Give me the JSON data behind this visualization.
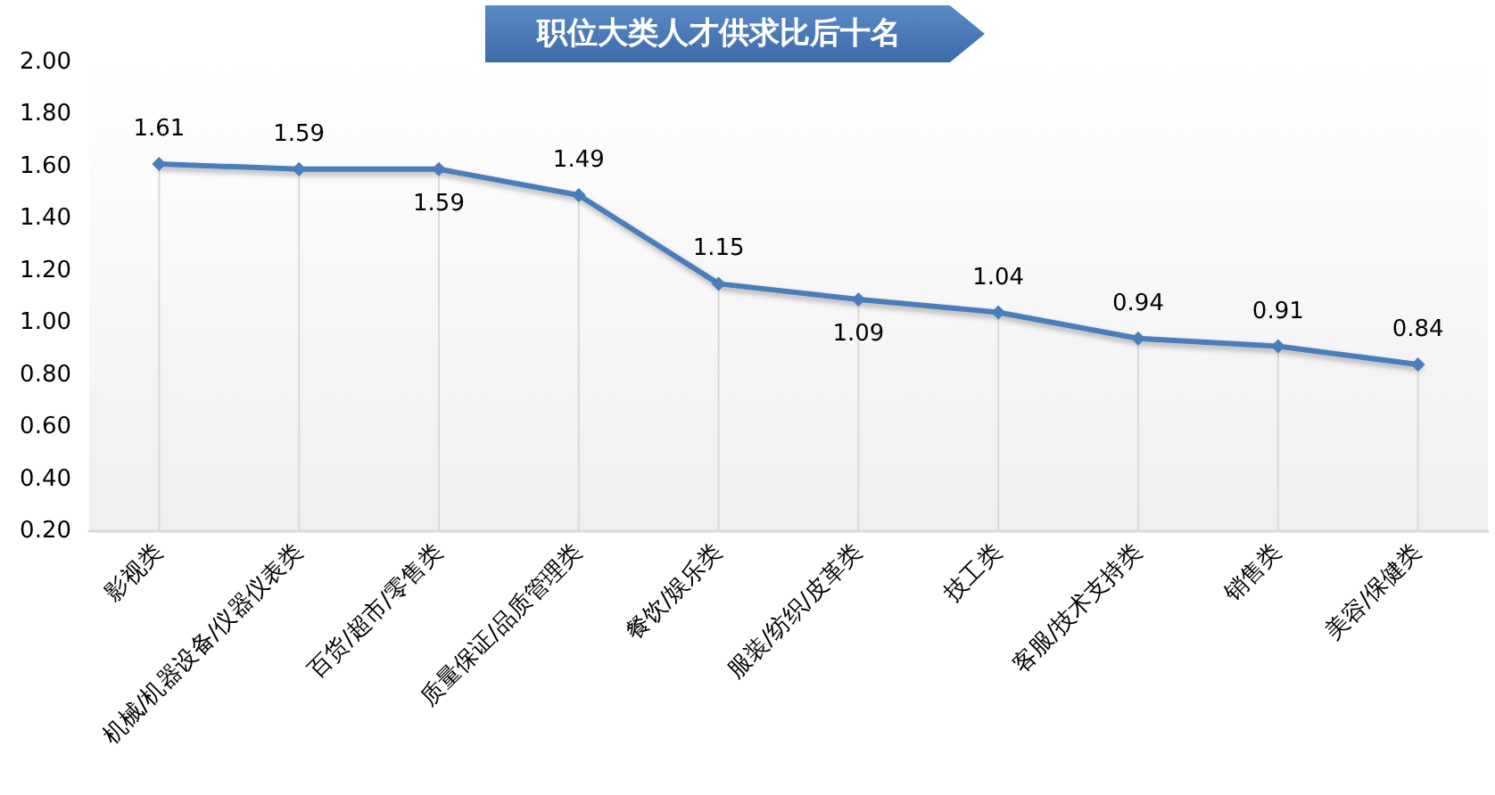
{
  "chart_data": {
    "type": "line",
    "title": "职位大类人才供求比后十名",
    "categories": [
      "影视类",
      "机械/机器设备/仪器仪表类",
      "百货/超市/零售类",
      "质量保证/品质管理类",
      "餐饮/娱乐类",
      "服装/纺织/皮革类",
      "技工类",
      "客服/技术支持类",
      "销售类",
      "美容/保健类"
    ],
    "values": [
      1.61,
      1.59,
      1.59,
      1.49,
      1.15,
      1.09,
      1.04,
      0.94,
      0.91,
      0.84
    ],
    "color": "#4a7ebb",
    "ylim": [
      0.2,
      2.0
    ],
    "yticks": [
      {
        "value": 0.2,
        "label": "0.20"
      },
      {
        "value": 0.4,
        "label": "0.40"
      },
      {
        "value": 0.6,
        "label": "0.60"
      },
      {
        "value": 0.8,
        "label": "0.80"
      },
      {
        "value": 1.0,
        "label": "1.00"
      },
      {
        "value": 1.2,
        "label": "1.20"
      },
      {
        "value": 1.4,
        "label": "1.40"
      },
      {
        "value": 1.6,
        "label": "1.60"
      },
      {
        "value": 1.8,
        "label": "1.80"
      },
      {
        "value": 2.0,
        "label": "2.00"
      }
    ],
    "marker": "diamond",
    "data_labels": true,
    "grid": "x"
  }
}
